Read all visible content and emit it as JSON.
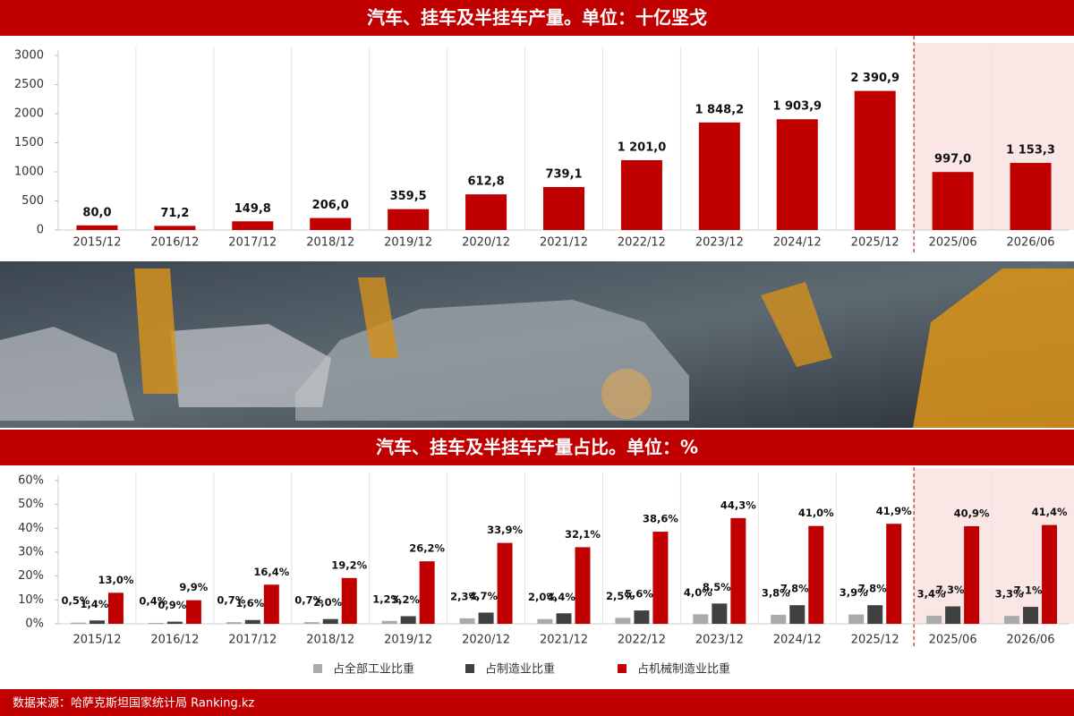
{
  "chart_data": [
    {
      "type": "bar",
      "title": "汽车、挂车及半挂车产量。单位：十亿坚戈",
      "categories": [
        "2015/12",
        "2016/12",
        "2017/12",
        "2018/12",
        "2019/12",
        "2020/12",
        "2021/12",
        "2022/12",
        "2023/12",
        "2024/12",
        "2025/12",
        "2025/06",
        "2026/06"
      ],
      "values": [
        80.0,
        71.2,
        149.8,
        206.0,
        359.5,
        612.8,
        739.1,
        1201.0,
        1848.2,
        1903.9,
        2390.9,
        997.0,
        1153.3
      ],
      "value_labels": [
        "80,0",
        "71,2",
        "149,8",
        "206,0",
        "359,5",
        "612,8",
        "739,1",
        "1 201,0",
        "1 848,2",
        "1 903,9",
        "2 390,9",
        "997,0",
        "1 153,3"
      ],
      "color": "#c00000",
      "ylim": [
        0,
        3000
      ],
      "yticks": [
        0,
        500,
        1000,
        1500,
        2000,
        2500,
        3000
      ]
    },
    {
      "type": "grouped_bar",
      "title": "汽车、挂车及半挂车产量占比。单位：%",
      "categories": [
        "2015/12",
        "2016/12",
        "2017/12",
        "2018/12",
        "2019/12",
        "2020/12",
        "2021/12",
        "2022/12",
        "2023/12",
        "2024/12",
        "2025/12",
        "2025/06",
        "2026/06"
      ],
      "series": [
        {
          "name": "占全部工业比重",
          "color": "#aaaaaa",
          "values": [
            0.5,
            0.4,
            0.7,
            0.7,
            1.2,
            2.3,
            2.0,
            2.5,
            4.0,
            3.8,
            3.9,
            3.4,
            3.3
          ],
          "value_labels": [
            "0,5%",
            "0,4%",
            "0,7%",
            "0,7%",
            "1,2%",
            "2,3%",
            "2,0%",
            "2,5%",
            "4,0%",
            "3,8%",
            "3,9%",
            "3,4%",
            "3,3%"
          ]
        },
        {
          "name": "占制造业比重",
          "color": "#404040",
          "values": [
            1.4,
            0.9,
            1.6,
            2.0,
            3.2,
            4.7,
            4.4,
            5.6,
            8.5,
            7.8,
            7.8,
            7.3,
            7.1
          ],
          "value_labels": [
            "1,4%",
            "0,9%",
            "1,6%",
            "2,0%",
            "3,2%",
            "4,7%",
            "4,4%",
            "5,6%",
            "8,5%",
            "7,8%",
            "7,8%",
            "7,3%",
            "7,1%"
          ]
        },
        {
          "name": "占机械制造业比重",
          "color": "#c00000",
          "values": [
            13.0,
            9.9,
            16.4,
            19.2,
            26.2,
            33.9,
            32.1,
            38.6,
            44.3,
            41.0,
            41.9,
            40.9,
            41.4
          ],
          "value_labels": [
            "13,0%",
            "9,9%",
            "16,4%",
            "19,2%",
            "26,2%",
            "33,9%",
            "32,1%",
            "38,6%",
            "44,3%",
            "41,0%",
            "41,9%",
            "40,9%",
            "41,4%"
          ]
        }
      ],
      "ylim": [
        0,
        60
      ],
      "yticks": [
        {
          "value": 0,
          "label": "0%"
        },
        {
          "value": 10,
          "label": "10%"
        },
        {
          "value": 20,
          "label": "20%"
        },
        {
          "value": 30,
          "label": "30%"
        },
        {
          "value": 40,
          "label": "40%"
        },
        {
          "value": 50,
          "label": "50%"
        },
        {
          "value": 60,
          "label": "60%"
        }
      ]
    }
  ],
  "source": "数据来源：哈萨克斯坦国家统计局 Ranking.kz"
}
